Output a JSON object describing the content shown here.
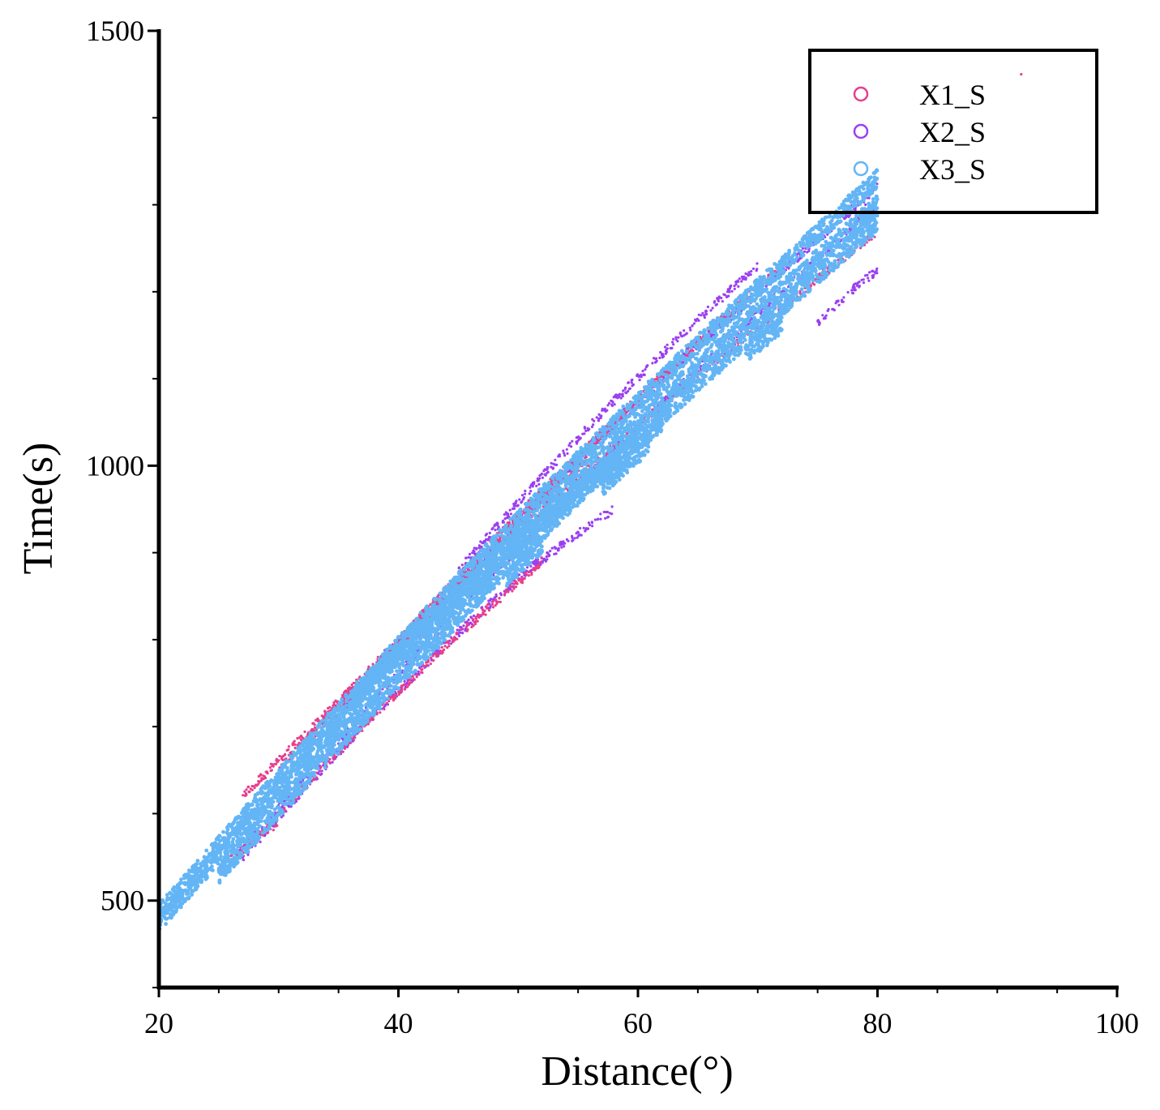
{
  "chart_data": {
    "type": "scatter",
    "title": "",
    "xlabel": "Distance(°)",
    "ylabel": "Time(s)",
    "xlim": [
      20,
      100
    ],
    "ylim": [
      400,
      1500
    ],
    "x_ticks": [
      "20",
      "40",
      "60",
      "80",
      "100"
    ],
    "y_ticks": [
      "500",
      "1000",
      "1500"
    ],
    "grid": false,
    "legend_position": "top-right",
    "series": [
      {
        "name": "X1_S",
        "color": "#e83e8c",
        "marker": "circle-open",
        "bands": [
          {
            "x": [
              27,
              80
            ],
            "y": [
              620,
              1270
            ]
          },
          {
            "x": [
              26,
              52
            ],
            "y": [
              540,
              890
            ]
          },
          {
            "x": [
              33,
              66
            ],
            "y": [
              690,
              1150
            ]
          },
          {
            "x": [
              37,
              72
            ],
            "y": [
              740,
              1230
            ]
          },
          {
            "x": [
              30,
              56
            ],
            "y": [
              650,
              1010
            ]
          },
          {
            "x": [
              25,
              30
            ],
            "y": [
              535,
              590
            ]
          }
        ],
        "points": [
          [
            92,
            1450
          ],
          [
            78.5,
            1290
          ],
          [
            26,
            585
          ]
        ]
      },
      {
        "name": "X2_S",
        "color": "#9b3ff0",
        "marker": "circle-open",
        "bands": [
          {
            "x": [
              26,
              80
            ],
            "y": [
              545,
              1300
            ]
          },
          {
            "x": [
              27,
              52
            ],
            "y": [
              550,
              895
            ]
          },
          {
            "x": [
              40,
              68
            ],
            "y": [
              780,
              1180
            ]
          },
          {
            "x": [
              45,
              70
            ],
            "y": [
              880,
              1230
            ]
          },
          {
            "x": [
              51,
              58
            ],
            "y": [
              880,
              950
            ]
          },
          {
            "x": [
              75,
              80
            ],
            "y": [
              1165,
              1225
            ]
          },
          {
            "x": [
              34,
              80
            ],
            "y": [
              700,
              1320
            ]
          }
        ],
        "points": [
          [
            79,
            1300
          ]
        ]
      },
      {
        "name": "X3_S",
        "color": "#63b5f5",
        "marker": "circle-open",
        "bands": [
          {
            "x": [
              20,
              80
            ],
            "y": [
              485,
              1330
            ]
          },
          {
            "x": [
              20,
              80
            ],
            "y": [
              475,
              1300
            ]
          },
          {
            "x": [
              25,
              80
            ],
            "y": [
              530,
              1280
            ]
          },
          {
            "x": [
              36,
              62
            ],
            "y": [
              730,
              1050
            ]
          },
          {
            "x": [
              57,
              61
            ],
            "y": [
              975,
              1025
            ]
          },
          {
            "x": [
              69,
              72
            ],
            "y": [
              1130,
              1160
            ]
          },
          {
            "x": [
              49,
              52
            ],
            "y": [
              870,
              910
            ]
          }
        ],
        "points": []
      }
    ]
  }
}
